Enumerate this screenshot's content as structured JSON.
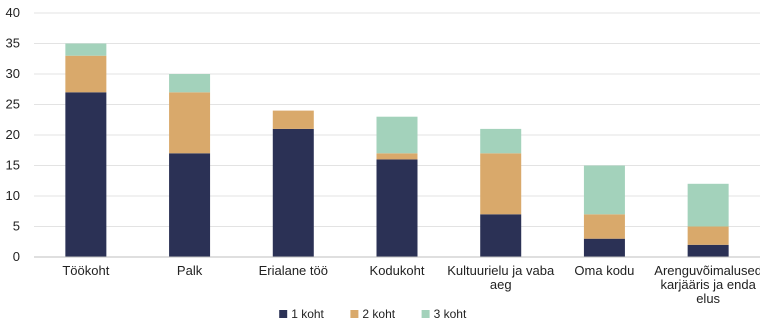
{
  "chart_data": {
    "type": "bar",
    "stacked": true,
    "categories": [
      "Töökoht",
      "Palk",
      "Erialane töö",
      "Kodukoht",
      "Kultuurielu ja vaba aeg",
      "Oma kodu",
      "Arenguvõimalused karjääris ja enda elus"
    ],
    "category_lines": [
      [
        "Töökoht"
      ],
      [
        "Palk"
      ],
      [
        "Erialane töö"
      ],
      [
        "Kodukoht"
      ],
      [
        "Kultuurielu ja vaba",
        "aeg"
      ],
      [
        "Oma kodu"
      ],
      [
        "Arenguvõimalused",
        "karjääris ja enda",
        "elus"
      ]
    ],
    "series": [
      {
        "name": "1 koht",
        "color": "#2b3155",
        "values": [
          27,
          17,
          21,
          16,
          7,
          3,
          2
        ]
      },
      {
        "name": "2 koht",
        "color": "#d9a96b",
        "values": [
          6,
          10,
          3,
          1,
          10,
          4,
          3
        ]
      },
      {
        "name": "3 koht",
        "color": "#a3d2bb",
        "values": [
          2,
          3,
          0,
          6,
          4,
          8,
          7
        ]
      }
    ],
    "ylim": [
      0,
      40
    ],
    "yticks": [
      0,
      5,
      10,
      15,
      20,
      25,
      30,
      35,
      40
    ],
    "grid": true,
    "legend_position": "bottom-center",
    "title": "",
    "xlabel": "",
    "ylabel": ""
  }
}
